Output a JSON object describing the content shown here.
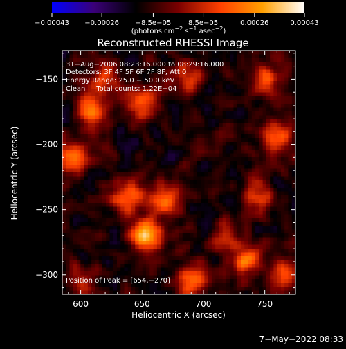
{
  "colorbar": {
    "range": [
      -0.00043,
      0.00043
    ],
    "tick_labels": [
      "−0.00043",
      "−0.00026",
      "−8.5e−05",
      "8.5e−05",
      "0.00026",
      "0.00043"
    ],
    "units_label": "(photons cm",
    "units_sup1": "−2",
    "units_mid": " s",
    "units_sup2": "−1",
    "units_tail": " asec",
    "units_sup3": "−2",
    "units_close": ")",
    "colors": [
      "#0000ff",
      "#3a0078",
      "#000000",
      "#7a0000",
      "#ff4000",
      "#ffa000",
      "#ffffff"
    ]
  },
  "chart_data": {
    "type": "heatmap",
    "title": "Reconstructed RHESSI Image",
    "xlabel": "Heliocentric X (arcsec)",
    "ylabel": "Heliocentric Y (arcsec)",
    "xlim": [
      585,
      775
    ],
    "ylim": [
      -315,
      -128
    ],
    "x_ticks": [
      600,
      650,
      700,
      750
    ],
    "x_tick_labels": [
      "600",
      "650",
      "700",
      "750"
    ],
    "y_ticks": [
      -300,
      -250,
      -200,
      -150
    ],
    "y_tick_labels": [
      "−300",
      "−250",
      "−200",
      "−150"
    ],
    "value_units": "photons cm^-2 s^-1 asec^-2",
    "peak": {
      "x": 654,
      "y": -270,
      "value": 0.00043
    },
    "sources": [
      {
        "x": 654,
        "y": -270,
        "value": 0.00043
      },
      {
        "x": 638,
        "y": -240,
        "value": 0.00034
      },
      {
        "x": 668,
        "y": -242,
        "value": 0.0003
      },
      {
        "x": 592,
        "y": -210,
        "value": 0.00036
      },
      {
        "x": 610,
        "y": -175,
        "value": 0.0003
      },
      {
        "x": 650,
        "y": -168,
        "value": 0.00029
      },
      {
        "x": 620,
        "y": -150,
        "value": 0.00026
      },
      {
        "x": 685,
        "y": -150,
        "value": 0.00024
      },
      {
        "x": 760,
        "y": -195,
        "value": 0.00032
      },
      {
        "x": 750,
        "y": -150,
        "value": 0.00028
      },
      {
        "x": 745,
        "y": -240,
        "value": 0.00022
      },
      {
        "x": 735,
        "y": -290,
        "value": 0.0003
      },
      {
        "x": 690,
        "y": -305,
        "value": 0.00031
      },
      {
        "x": 770,
        "y": -300,
        "value": 0.00027
      },
      {
        "x": 720,
        "y": -270,
        "value": 0.00018
      },
      {
        "x": 600,
        "y": -305,
        "value": 0.0002
      }
    ],
    "grid": false
  },
  "info": {
    "time_range": "31−Aug−2006 08:23:16.000 to 08:29:16.000",
    "detectors": "Detectors: 3F 4F 5F 6F 7F 8F, Att 0",
    "energy_range": "Energy Range: 25.0 − 50.0 keV",
    "clean_counts": "Clean     Total counts: 1.22E+04",
    "peak_position": "Position of Peak = [654,−270]"
  },
  "footer": {
    "date": "7−May−2022 08:33"
  }
}
